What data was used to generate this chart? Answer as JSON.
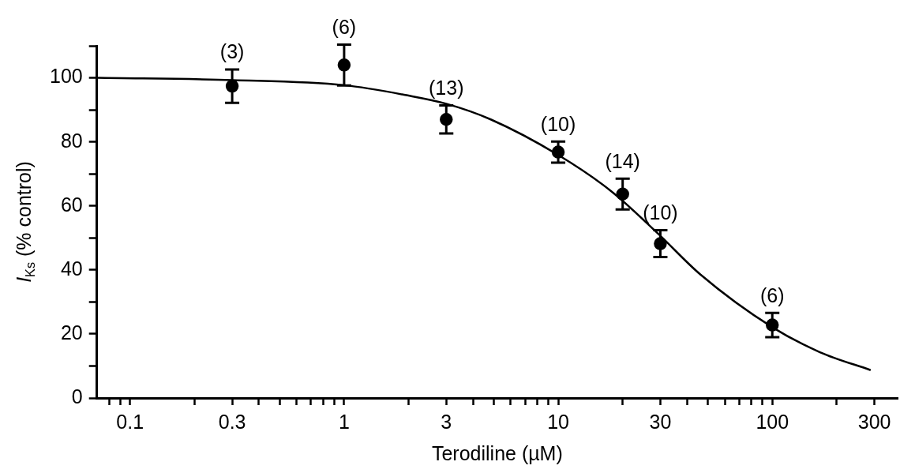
{
  "chart_data": {
    "type": "scatter",
    "xlabel": "Terodiline (µM)",
    "ylabel": "I$_{Ks}$ (% control)",
    "log": "x",
    "grid": false,
    "legend": false,
    "marker": "circle",
    "xlim": [
      0.07,
      385
    ],
    "ylim": [
      0,
      110
    ],
    "xticks": [
      {
        "value": 0.08,
        "label": null
      },
      {
        "value": 0.09,
        "label": null
      },
      0.1,
      {
        "value": 0.2,
        "label": null
      },
      0.3,
      {
        "value": 0.4,
        "label": null
      },
      {
        "value": 0.5,
        "label": null
      },
      {
        "value": 0.6,
        "label": null
      },
      {
        "value": 0.7,
        "label": null
      },
      {
        "value": 0.8,
        "label": null
      },
      {
        "value": 0.9,
        "label": null
      },
      1,
      {
        "value": 2,
        "label": null
      },
      3,
      {
        "value": 4,
        "label": null
      },
      {
        "value": 5,
        "label": null
      },
      {
        "value": 6,
        "label": null
      },
      {
        "value": 7,
        "label": null
      },
      {
        "value": 8,
        "label": null
      },
      {
        "value": 9,
        "label": null
      },
      10,
      {
        "value": 20,
        "label": null
      },
      30,
      {
        "value": 40,
        "label": null
      },
      {
        "value": 50,
        "label": null
      },
      {
        "value": 60,
        "label": null
      },
      {
        "value": 70,
        "label": null
      },
      {
        "value": 80,
        "label": null
      },
      {
        "value": 90,
        "label": null
      },
      100,
      {
        "value": 200,
        "label": null
      },
      300
    ],
    "yticks": [
      0,
      {
        "value": 10,
        "label": null
      },
      20,
      {
        "value": 30,
        "label": null
      },
      40,
      {
        "value": 50,
        "label": null
      },
      60,
      {
        "value": 70,
        "label": null
      },
      80,
      {
        "value": 90,
        "label": null
      },
      100,
      {
        "value": 110,
        "label": null
      }
    ],
    "series": [
      {
        "color": "#000000",
        "x": [
          0.3,
          1,
          3,
          10,
          20,
          30,
          100
        ],
        "values": [
          97.4,
          104,
          87,
          76.8,
          63.7,
          48.2,
          22.8
        ],
        "errors": [
          5.2,
          6.4,
          4.4,
          3.3,
          4.8,
          4.2,
          3.8
        ]
      },
      {
        "type": "line",
        "color": "#000000",
        "marker": "none",
        "x": [
          0.0705,
          0.301,
          1,
          1.98,
          3,
          4.84,
          10,
          17.6,
          29.4,
          46.1,
          100,
          167,
          288
        ],
        "values": [
          100,
          99.3,
          97.7,
          94.5,
          91.9,
          87,
          75.9,
          64.7,
          51.2,
          38.6,
          22.1,
          14.3,
          8.7
        ]
      }
    ],
    "annotations": [
      {
        "text": "(3)",
        "x": 0.3,
        "y": 102.6
      },
      {
        "text": "(6)",
        "x": 1,
        "y": 110.4
      },
      {
        "text": "(13)",
        "x": 3,
        "y": 91.4
      },
      {
        "text": "(10)",
        "x": 10,
        "y": 80.1
      },
      {
        "text": "(14)",
        "x": 20,
        "y": 68.5
      },
      {
        "text": "(10)",
        "x": 30,
        "y": 52.4
      },
      {
        "text": "(6)",
        "x": 100,
        "y": 26.6
      }
    ]
  }
}
